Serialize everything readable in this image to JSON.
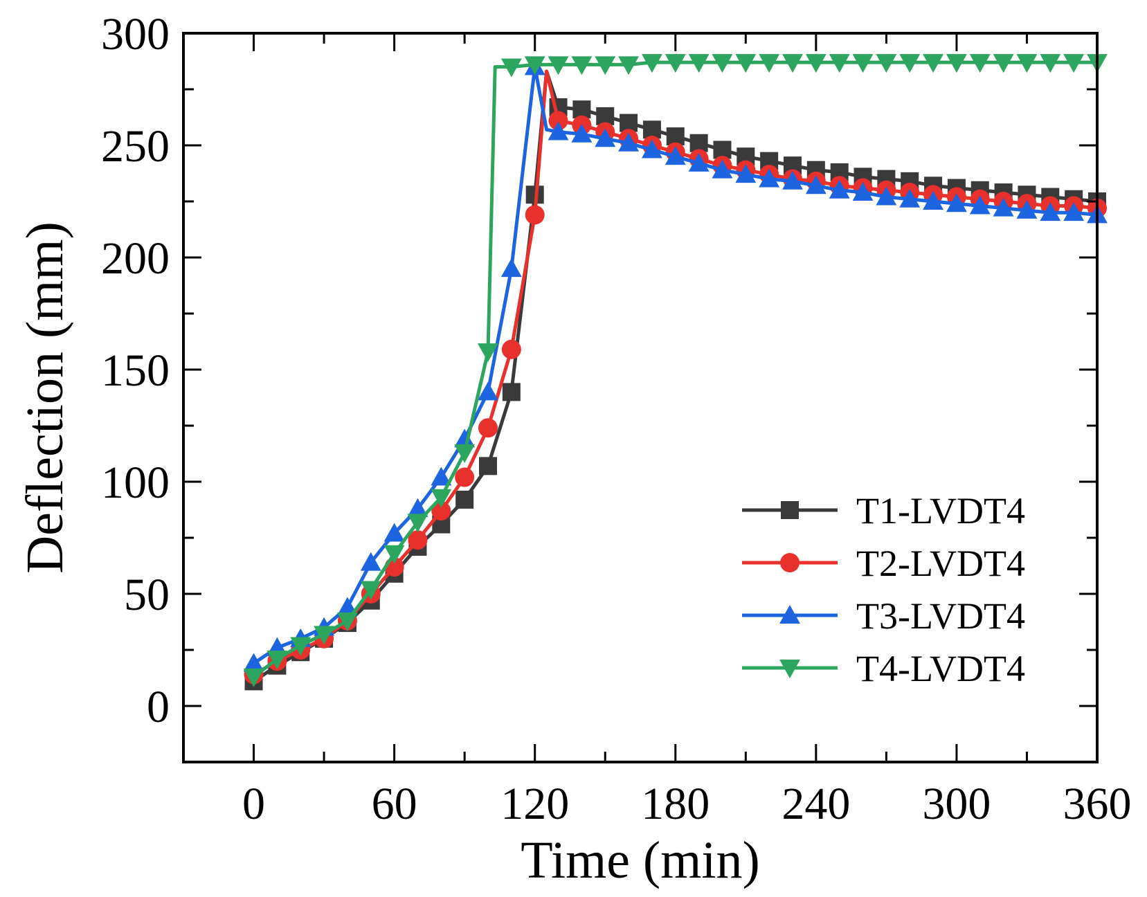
{
  "chart_data": {
    "type": "line",
    "title": "",
    "xlabel": "Time (min)",
    "ylabel": "Deflection (mm)",
    "xlim": [
      -30,
      360
    ],
    "ylim": [
      -25,
      300
    ],
    "xticks": [
      0,
      60,
      120,
      180,
      240,
      300,
      360
    ],
    "yticks": [
      0,
      50,
      100,
      150,
      200,
      250,
      300
    ],
    "grid": false,
    "legend_position": "bottom-right",
    "series": [
      {
        "name": "T1-LVDT4",
        "color": "#3a3a3a",
        "marker": "square",
        "x": [
          0,
          10,
          20,
          30,
          40,
          50,
          60,
          70,
          80,
          90,
          100,
          110,
          120,
          125,
          130,
          140,
          150,
          160,
          170,
          180,
          190,
          200,
          210,
          220,
          230,
          240,
          250,
          260,
          270,
          280,
          290,
          300,
          310,
          320,
          330,
          340,
          350,
          360
        ],
        "y": [
          11,
          18,
          24,
          30,
          37,
          47,
          59,
          71,
          81,
          92,
          107,
          140,
          228,
          283,
          267,
          266,
          263,
          260,
          257,
          254,
          251,
          248,
          245,
          243,
          241,
          239,
          238,
          236,
          235,
          234,
          232,
          231,
          230,
          229,
          228,
          227,
          226,
          225
        ],
        "marker_x": [
          0,
          10,
          20,
          30,
          40,
          50,
          60,
          70,
          80,
          90,
          100,
          110,
          120,
          130,
          140,
          150,
          160,
          170,
          180,
          190,
          200,
          210,
          220,
          230,
          240,
          250,
          260,
          270,
          280,
          290,
          300,
          310,
          320,
          330,
          340,
          350,
          360
        ]
      },
      {
        "name": "T2-LVDT4",
        "color": "#e8302c",
        "marker": "circle",
        "x": [
          0,
          10,
          20,
          30,
          40,
          50,
          60,
          70,
          80,
          90,
          100,
          110,
          120,
          125,
          130,
          140,
          150,
          160,
          170,
          180,
          190,
          200,
          210,
          220,
          230,
          240,
          250,
          260,
          270,
          280,
          290,
          300,
          310,
          320,
          330,
          340,
          350,
          360
        ],
        "y": [
          14,
          20,
          25,
          30,
          38,
          50,
          62,
          74,
          87,
          102,
          124,
          159,
          219,
          283,
          261,
          259,
          256,
          253,
          250,
          247,
          244,
          241,
          239,
          237,
          235,
          234,
          232,
          231,
          230,
          229,
          228,
          227,
          226,
          225,
          224,
          223,
          223,
          222
        ],
        "marker_x": [
          0,
          10,
          20,
          30,
          40,
          50,
          60,
          70,
          80,
          90,
          100,
          110,
          120,
          130,
          140,
          150,
          160,
          170,
          180,
          190,
          200,
          210,
          220,
          230,
          240,
          250,
          260,
          270,
          280,
          290,
          300,
          310,
          320,
          330,
          340,
          350,
          360
        ]
      },
      {
        "name": "T3-LVDT4",
        "color": "#1c64e0",
        "marker": "triangle-up",
        "x": [
          0,
          10,
          20,
          30,
          40,
          50,
          60,
          70,
          80,
          90,
          100,
          110,
          120,
          125,
          130,
          140,
          150,
          160,
          170,
          180,
          190,
          200,
          210,
          220,
          230,
          240,
          250,
          260,
          270,
          280,
          290,
          300,
          310,
          320,
          330,
          340,
          350,
          360
        ],
        "y": [
          19,
          26,
          30,
          35,
          44,
          64,
          77,
          88,
          102,
          119,
          140,
          195,
          285,
          257,
          256,
          255,
          253,
          251,
          248,
          245,
          242,
          239,
          237,
          235,
          234,
          232,
          230,
          229,
          227,
          226,
          225,
          224,
          223,
          222,
          221,
          220,
          220,
          219
        ],
        "marker_x": [
          0,
          10,
          20,
          30,
          40,
          50,
          60,
          70,
          80,
          90,
          100,
          110,
          120,
          130,
          140,
          150,
          160,
          170,
          180,
          190,
          200,
          210,
          220,
          230,
          240,
          250,
          260,
          270,
          280,
          290,
          300,
          310,
          320,
          330,
          340,
          350,
          360
        ]
      },
      {
        "name": "T4-LVDT4",
        "color": "#2ca55e",
        "marker": "triangle-down",
        "x": [
          0,
          10,
          20,
          30,
          40,
          50,
          60,
          70,
          80,
          90,
          100,
          103,
          110,
          120,
          130,
          140,
          150,
          160,
          170,
          180,
          190,
          200,
          210,
          220,
          230,
          240,
          250,
          260,
          270,
          280,
          290,
          300,
          310,
          320,
          330,
          340,
          350,
          360
        ],
        "y": [
          13,
          21,
          27,
          32,
          38,
          52,
          68,
          82,
          93,
          113,
          158,
          285,
          285,
          286,
          286,
          286,
          286,
          286,
          287,
          287,
          287,
          287,
          287,
          287,
          287,
          287,
          287,
          287,
          287,
          287,
          287,
          287,
          287,
          287,
          287,
          287,
          287,
          287
        ],
        "marker_x": [
          0,
          10,
          20,
          30,
          40,
          50,
          60,
          70,
          80,
          90,
          100,
          110,
          120,
          130,
          140,
          150,
          160,
          170,
          180,
          190,
          200,
          210,
          220,
          230,
          240,
          250,
          260,
          270,
          280,
          290,
          300,
          310,
          320,
          330,
          340,
          350,
          360
        ]
      }
    ]
  }
}
